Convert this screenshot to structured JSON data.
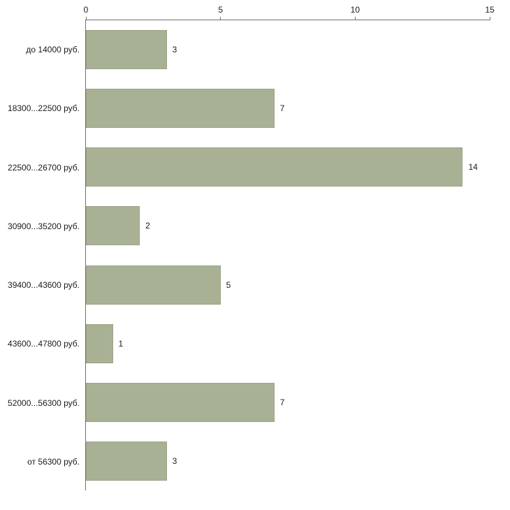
{
  "chart_data": {
    "type": "bar",
    "orientation": "horizontal",
    "title": "",
    "xlabel": "",
    "ylabel": "",
    "categories": [
      "до 14000 руб.",
      "18300...22500 руб.",
      "22500...26700 руб.",
      "30900...35200 руб.",
      "39400...43600 руб.",
      "43600...47800 руб.",
      "52000...56300 руб.",
      "от 56300 руб."
    ],
    "values": [
      3,
      7,
      14,
      2,
      5,
      1,
      7,
      3
    ],
    "xlim": [
      0,
      15
    ],
    "xticks": [
      0,
      5,
      10,
      15
    ],
    "grid": false,
    "legend_position": "none",
    "bar_color": "#a9b194",
    "bar_border_color": "#9aa287",
    "axis_color": "#707070",
    "background_color": "#ffffff"
  }
}
